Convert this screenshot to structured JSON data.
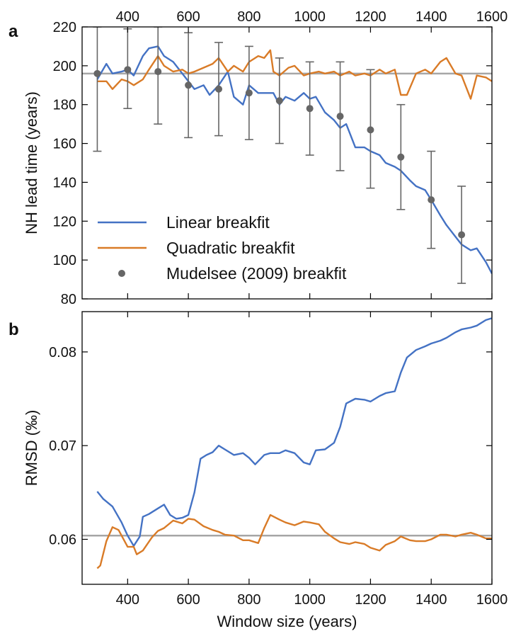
{
  "chart_data": [
    {
      "panel": "a",
      "type": "line",
      "xlabel": "",
      "ylabel": "NH lead time (years)",
      "xlim": [
        250,
        1600
      ],
      "ylim": [
        80,
        220
      ],
      "xticks": [
        400,
        600,
        800,
        1000,
        1200,
        1400,
        1600
      ],
      "yticks": [
        80,
        100,
        120,
        140,
        160,
        180,
        200,
        220
      ],
      "grid": false,
      "legend_position": "bottom-left",
      "reference_line": 196,
      "series": [
        {
          "name": "Linear breakfit",
          "color": "#4472c4",
          "x": [
            300,
            330,
            350,
            380,
            400,
            420,
            450,
            470,
            500,
            520,
            550,
            580,
            600,
            620,
            650,
            670,
            700,
            730,
            750,
            780,
            800,
            830,
            850,
            880,
            900,
            920,
            950,
            980,
            1000,
            1020,
            1050,
            1080,
            1100,
            1120,
            1150,
            1180,
            1200,
            1230,
            1250,
            1280,
            1300,
            1330,
            1350,
            1380,
            1400,
            1430,
            1450,
            1480,
            1500,
            1530,
            1550,
            1580,
            1600
          ],
          "y": [
            193,
            201,
            196,
            197,
            198,
            195,
            205,
            209,
            210,
            205,
            202,
            196,
            192,
            188,
            190,
            185,
            190,
            197,
            184,
            180,
            190,
            186,
            186,
            186,
            180,
            184,
            182,
            186,
            183,
            184,
            176,
            172,
            168,
            170,
            158,
            158,
            156,
            154,
            150,
            148,
            146,
            141,
            138,
            136,
            131,
            123,
            118,
            112,
            108,
            105,
            106,
            99,
            93
          ]
        },
        {
          "name": "Quadratic breakfit",
          "color": "#d97b27",
          "x": [
            300,
            330,
            350,
            380,
            400,
            420,
            450,
            470,
            500,
            520,
            550,
            580,
            600,
            620,
            650,
            680,
            700,
            730,
            750,
            780,
            800,
            830,
            850,
            870,
            880,
            900,
            930,
            950,
            980,
            1000,
            1030,
            1050,
            1080,
            1100,
            1130,
            1150,
            1180,
            1200,
            1230,
            1250,
            1280,
            1300,
            1320,
            1350,
            1380,
            1400,
            1430,
            1450,
            1480,
            1500,
            1530,
            1550,
            1580,
            1600
          ],
          "y": [
            192,
            192,
            188,
            193,
            192,
            190,
            193,
            198,
            205,
            200,
            197,
            198,
            196,
            197,
            199,
            201,
            204,
            197,
            200,
            197,
            202,
            205,
            204,
            208,
            197,
            195,
            199,
            200,
            195,
            196,
            197,
            196,
            197,
            195,
            197,
            195,
            196,
            195,
            198,
            196,
            198,
            185,
            185,
            196,
            198,
            196,
            202,
            204,
            196,
            195,
            183,
            195,
            194,
            192
          ]
        },
        {
          "name": "Mudelsee (2009) breakfit",
          "type": "scatter",
          "color": "#666666",
          "x": [
            300,
            400,
            500,
            600,
            700,
            800,
            900,
            1000,
            1100,
            1200,
            1300,
            1400,
            1500
          ],
          "y": [
            196,
            198,
            197,
            190,
            188,
            186,
            182,
            178,
            174,
            167,
            153,
            131,
            113
          ],
          "err_low": [
            156,
            178,
            170,
            163,
            164,
            162,
            160,
            154,
            146,
            137,
            126,
            106,
            88
          ],
          "err_high": [
            220,
            219,
            220,
            217,
            212,
            210,
            204,
            202,
            202,
            198,
            180,
            156,
            138
          ]
        }
      ]
    },
    {
      "panel": "b",
      "type": "line",
      "xlabel": "Window size (years)",
      "ylabel": "RMSD (‰)",
      "xlim": [
        250,
        1600
      ],
      "ylim": [
        0.0552,
        0.0843
      ],
      "xticks": [
        400,
        600,
        800,
        1000,
        1200,
        1400,
        1600
      ],
      "yticks": [
        0.06,
        0.07,
        0.08
      ],
      "grid": false,
      "reference_line": 0.0604,
      "series": [
        {
          "name": "Linear breakfit",
          "color": "#4472c4",
          "x": [
            300,
            320,
            350,
            380,
            400,
            420,
            440,
            450,
            470,
            500,
            520,
            540,
            560,
            580,
            600,
            620,
            640,
            660,
            680,
            700,
            720,
            750,
            780,
            800,
            820,
            850,
            870,
            900,
            920,
            950,
            980,
            1000,
            1020,
            1050,
            1080,
            1100,
            1120,
            1150,
            1180,
            1200,
            1230,
            1250,
            1280,
            1300,
            1320,
            1350,
            1380,
            1400,
            1430,
            1450,
            1480,
            1500,
            1530,
            1550,
            1580,
            1600
          ],
          "y": [
            0.0651,
            0.0643,
            0.0635,
            0.0618,
            0.0604,
            0.0593,
            0.0603,
            0.0624,
            0.0627,
            0.0633,
            0.0637,
            0.0626,
            0.0622,
            0.0623,
            0.0626,
            0.065,
            0.0686,
            0.069,
            0.0693,
            0.07,
            0.0696,
            0.069,
            0.0692,
            0.0687,
            0.068,
            0.069,
            0.0692,
            0.0692,
            0.0695,
            0.0692,
            0.0682,
            0.068,
            0.0695,
            0.0696,
            0.0703,
            0.072,
            0.0745,
            0.075,
            0.0749,
            0.0747,
            0.0753,
            0.0756,
            0.0758,
            0.0778,
            0.0794,
            0.0802,
            0.0806,
            0.0809,
            0.0812,
            0.0815,
            0.0821,
            0.0824,
            0.0826,
            0.0828,
            0.0834,
            0.0836
          ]
        },
        {
          "name": "Quadratic breakfit",
          "color": "#d97b27",
          "x": [
            300,
            310,
            330,
            350,
            370,
            390,
            400,
            420,
            430,
            450,
            480,
            500,
            520,
            550,
            580,
            600,
            620,
            650,
            680,
            700,
            720,
            750,
            780,
            800,
            830,
            850,
            870,
            900,
            920,
            950,
            980,
            1000,
            1030,
            1050,
            1080,
            1100,
            1130,
            1150,
            1180,
            1200,
            1230,
            1250,
            1280,
            1300,
            1330,
            1350,
            1380,
            1400,
            1430,
            1450,
            1480,
            1500,
            1530,
            1550,
            1580,
            1600
          ],
          "y": [
            0.0569,
            0.0572,
            0.0598,
            0.0613,
            0.061,
            0.0598,
            0.0592,
            0.0592,
            0.0584,
            0.0588,
            0.0602,
            0.0609,
            0.0612,
            0.062,
            0.0617,
            0.0622,
            0.0621,
            0.0614,
            0.061,
            0.0608,
            0.0605,
            0.0604,
            0.0599,
            0.0599,
            0.0596,
            0.0612,
            0.0626,
            0.0621,
            0.0618,
            0.0615,
            0.0619,
            0.0618,
            0.0616,
            0.0608,
            0.0601,
            0.0597,
            0.0595,
            0.0597,
            0.0595,
            0.0591,
            0.0588,
            0.0594,
            0.0598,
            0.0603,
            0.0599,
            0.0598,
            0.0598,
            0.06,
            0.0605,
            0.0605,
            0.0603,
            0.0605,
            0.0607,
            0.0605,
            0.0601,
            0.0601
          ]
        }
      ]
    }
  ]
}
